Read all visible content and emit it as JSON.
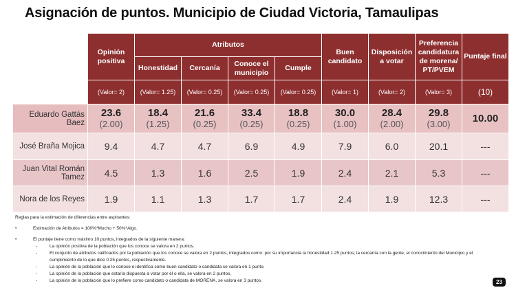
{
  "title": "Asignación de puntos. Municipio de Ciudad Victoria, Tamaulipas",
  "headers": {
    "opinion": "Opinión positiva",
    "atributos": "Atributos",
    "honestidad": "Honestidad",
    "cercania": "Cercanía",
    "conoce": "Conoce el municipio",
    "cumple": "Cumple",
    "buen": "Buen candidato",
    "disposicion": "Disposición a votar",
    "preferencia": "Preferencia candidatura de morena/ PT/PVEM",
    "puntaje": "Puntaje final"
  },
  "valores": [
    "(Valor= 2)",
    "(Valor= 1.25)",
    "(Valor= 0.25)",
    "(Valor= 0.25)",
    "(Valor= 0.25)",
    "(Valor= 1)",
    "(Valor= 2)",
    "(Valor= 3)",
    "(10)"
  ],
  "rows": [
    {
      "name": "Eduardo Gattás Baez",
      "values": [
        "23.6",
        "18.4",
        "21.6",
        "33.4",
        "18.8",
        "30.0",
        "28.4",
        "29.8"
      ],
      "points": [
        "(2.00)",
        "(1.25)",
        "(0.25)",
        "(0.25)",
        "(0.25)",
        "(1.00)",
        "(2.00)",
        "(3.00)"
      ],
      "final": "10.00"
    },
    {
      "name": "José Braña Mojica",
      "values": [
        "9.4",
        "4.7",
        "4.7",
        "6.9",
        "4.9",
        "7.9",
        "6.0",
        "20.1"
      ],
      "final": "---"
    },
    {
      "name": "Juan Vital Román Tamez",
      "values": [
        "4.5",
        "1.3",
        "1.6",
        "2.5",
        "1.9",
        "2.4",
        "2.1",
        "5.3"
      ],
      "final": "---"
    },
    {
      "name": "Nora de los Reyes",
      "values": [
        "1.9",
        "1.1",
        "1.3",
        "1.7",
        "1.7",
        "2.4",
        "1.9",
        "12.3"
      ],
      "final": "---"
    }
  ],
  "notes": {
    "heading": "Reglas para la estimación de diferencias entre aspirantes:",
    "bullet1": "Estimación de Atributos = 100%*Mucho + 50%*Algo.",
    "bullet2": "El puntaje tiene como máximo 10 puntos, integrados de la siguiente manera:",
    "items": [
      "La opinión positiva de la población que los conoce se valora en 2 puntos.",
      "El conjunto de atributos calificados por la población que los conoce se valora en 2 puntos, integrados como: por su importancia la honestidad 1.25 puntos; la cercanía con la gente, el conocimiento del Municipio y el cumplimiento de lo que dice 0.25 puntos, respectivamente.",
      "La opinión de la población que lo conoce e identifica como buen candidato o candidata se valora en 1 punto.",
      "La opinión de la población que estaría dispuesta a votar por él o ella, se valora en 2 puntos.",
      "La opinión de la población que lo prefiere como candidato o candidata de MORENA, se valora en 3 puntos."
    ]
  },
  "page_number": "23"
}
